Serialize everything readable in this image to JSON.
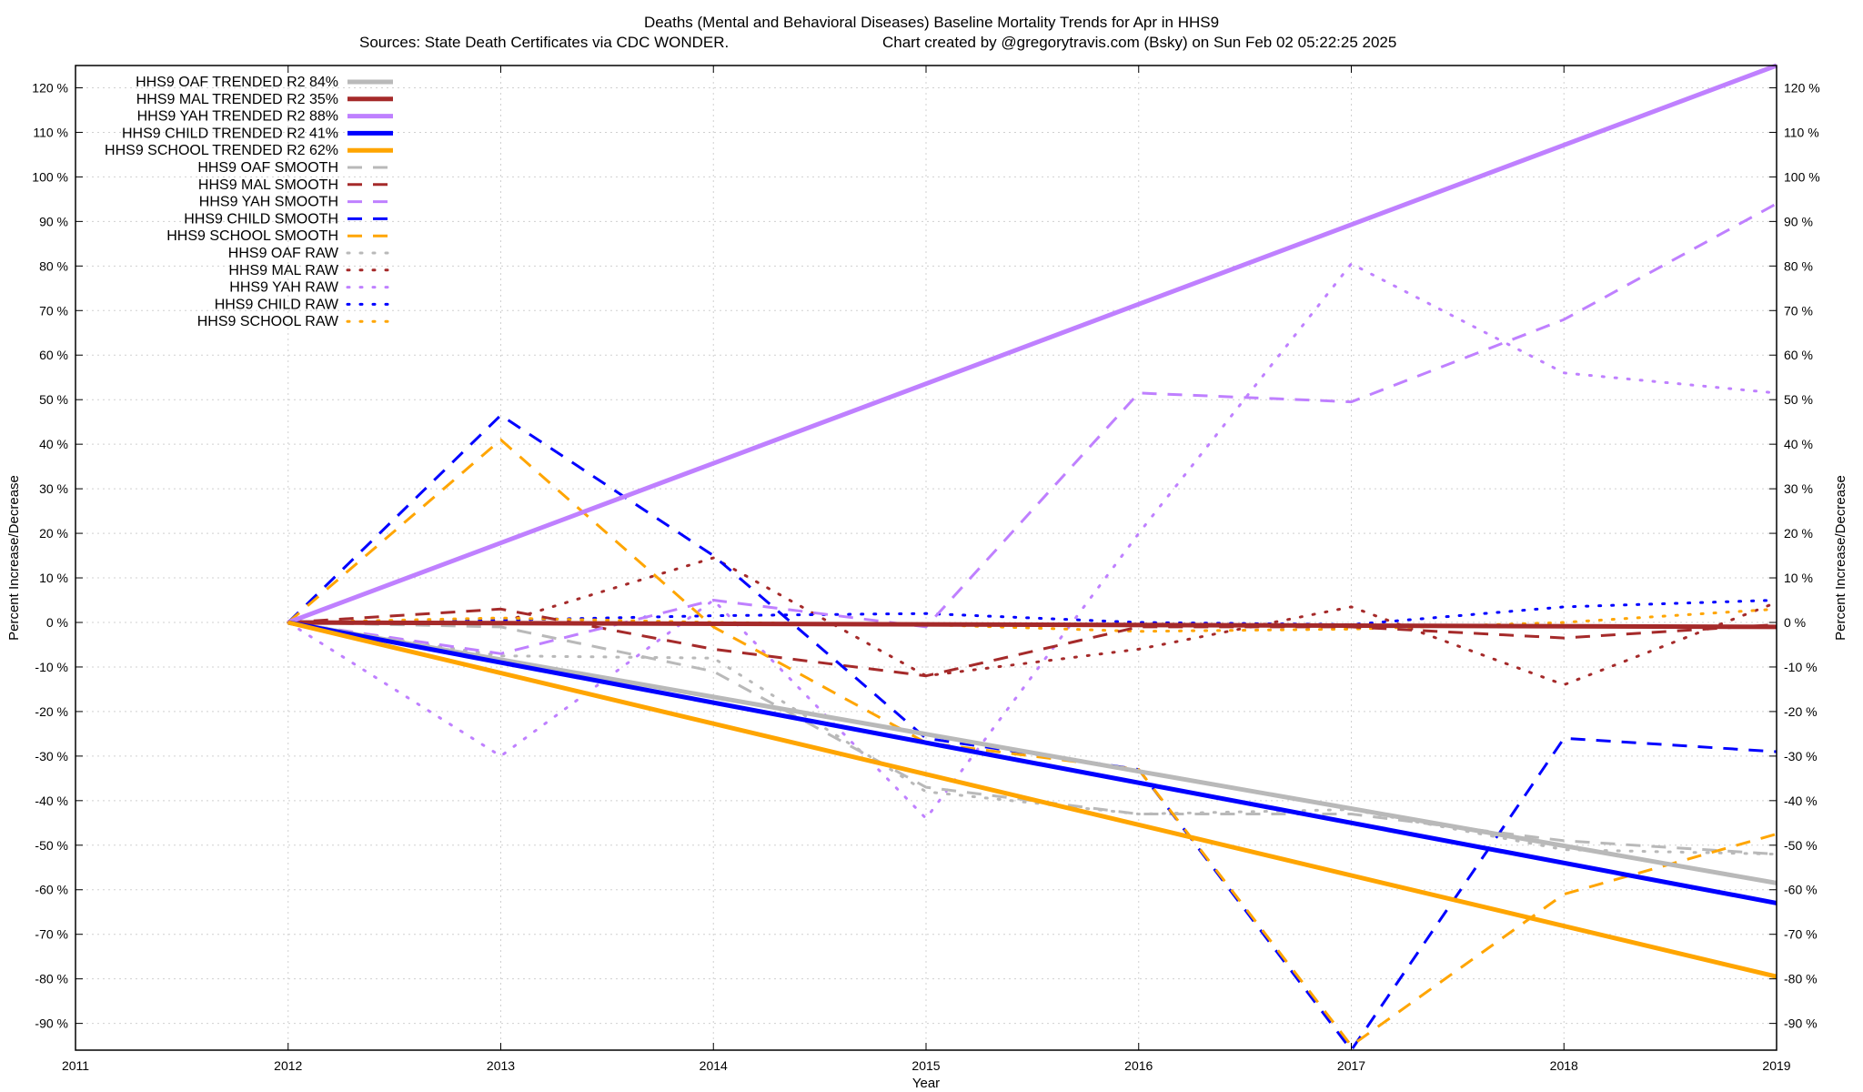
{
  "chart_data": {
    "type": "line",
    "title": "Deaths (Mental and Behavioral Diseases)  Baseline Mortality Trends for Apr in HHS9",
    "subtitle_left": "Sources: State Death Certificates via CDC WONDER.",
    "subtitle_right": "Chart created by @gregorytravis.com (Bsky) on Sun Feb 02 05:22:25 2025",
    "xlabel": "Year",
    "ylabel_left": "Percent Increase/Decrease",
    "ylabel_right": "Percent Increase/Decrease",
    "xlim": [
      2011,
      2019
    ],
    "ylim": [
      -96,
      125
    ],
    "x_ticks": [
      2011,
      2012,
      2013,
      2014,
      2015,
      2016,
      2017,
      2018,
      2019
    ],
    "y_ticks": [
      120,
      110,
      100,
      90,
      80,
      70,
      60,
      50,
      40,
      30,
      20,
      10,
      0,
      -10,
      -20,
      -30,
      -40,
      -50,
      -60,
      -70,
      -80,
      -90
    ],
    "y_tick_suffix": " %",
    "grid": true,
    "legend_position": "top-left",
    "series": [
      {
        "name": "HHS9 OAF TRENDED R2  84%",
        "color": "#b9b9b9",
        "style": "solid",
        "width": 5,
        "x": [
          2012,
          2019
        ],
        "values": [
          0,
          -58.5
        ]
      },
      {
        "name": "HHS9 MAL TRENDED R2  35%",
        "color": "#a52a2a",
        "style": "solid",
        "width": 5,
        "x": [
          2012,
          2019
        ],
        "values": [
          0,
          -1
        ]
      },
      {
        "name": "HHS9 YAH TRENDED R2  88%",
        "color": "#bf80ff",
        "style": "solid",
        "width": 5,
        "x": [
          2012,
          2019
        ],
        "values": [
          0,
          125
        ]
      },
      {
        "name": "HHS9 CHILD TRENDED R2  41%",
        "color": "#0000ff",
        "style": "solid",
        "width": 5,
        "x": [
          2012,
          2019
        ],
        "values": [
          0,
          -63
        ]
      },
      {
        "name": "HHS9 SCHOOL TRENDED R2  62%",
        "color": "#ffa500",
        "style": "solid",
        "width": 5,
        "x": [
          2012,
          2019
        ],
        "values": [
          0,
          -79.5
        ]
      },
      {
        "name": "HHS9 OAF SMOOTH",
        "color": "#b9b9b9",
        "style": "dashed",
        "width": 3,
        "x": [
          2012,
          2013,
          2014,
          2015,
          2016,
          2017,
          2018,
          2019
        ],
        "values": [
          0,
          -1,
          -11,
          -37,
          -43,
          -43,
          -49,
          -52
        ]
      },
      {
        "name": "HHS9 MAL SMOOTH",
        "color": "#a52a2a",
        "style": "dashed",
        "width": 3,
        "x": [
          2012,
          2013,
          2014,
          2015,
          2016,
          2017,
          2018,
          2019
        ],
        "values": [
          0,
          3,
          -6,
          -12,
          -1,
          -1,
          -3.5,
          -0.5
        ]
      },
      {
        "name": "HHS9 YAH SMOOTH",
        "color": "#bf80ff",
        "style": "dashed",
        "width": 3,
        "x": [
          2012,
          2013,
          2014,
          2015,
          2016,
          2017,
          2018,
          2019
        ],
        "values": [
          0,
          -7,
          5,
          -1,
          51.5,
          49.5,
          68,
          94
        ]
      },
      {
        "name": "HHS9 CHILD SMOOTH",
        "color": "#0000ff",
        "style": "dashed",
        "width": 3,
        "x": [
          2012,
          2013,
          2014,
          2015,
          2016,
          2017,
          2018,
          2019
        ],
        "values": [
          0,
          46.5,
          15,
          -26,
          -33,
          -96,
          -26,
          -29
        ]
      },
      {
        "name": "HHS9 SCHOOL SMOOTH",
        "color": "#ffa500",
        "style": "dashed",
        "width": 3,
        "x": [
          2012,
          2013,
          2014,
          2015,
          2016,
          2017,
          2018,
          2019
        ],
        "values": [
          0,
          41,
          -1,
          -27,
          -33,
          -95,
          -61,
          -47.5
        ]
      },
      {
        "name": "HHS9 OAF RAW",
        "color": "#b9b9b9",
        "style": "dotted",
        "width": 3,
        "x": [
          2012,
          2013,
          2014,
          2015,
          2016,
          2017,
          2018,
          2019
        ],
        "values": [
          0,
          -7.5,
          -8,
          -38,
          -43,
          -42,
          -51,
          -52
        ]
      },
      {
        "name": "HHS9 MAL RAW",
        "color": "#a52a2a",
        "style": "dotted",
        "width": 3,
        "x": [
          2012,
          2013,
          2014,
          2015,
          2016,
          2017,
          2018,
          2019
        ],
        "values": [
          0,
          0,
          14.5,
          -12,
          -6,
          3.5,
          -14,
          4.5
        ]
      },
      {
        "name": "HHS9 YAH RAW",
        "color": "#bf80ff",
        "style": "dotted",
        "width": 3,
        "x": [
          2012,
          2013,
          2014,
          2015,
          2016,
          2017,
          2018,
          2019
        ],
        "values": [
          0,
          -30,
          5,
          -44,
          20,
          80.5,
          56,
          51.5
        ]
      },
      {
        "name": "HHS9 CHILD RAW",
        "color": "#0000ff",
        "style": "dotted",
        "width": 3,
        "x": [
          2012,
          2013,
          2014,
          2015,
          2016,
          2017,
          2018,
          2019
        ],
        "values": [
          0,
          0.5,
          1.5,
          2,
          0,
          -0.5,
          3.5,
          5
        ]
      },
      {
        "name": "HHS9 SCHOOL RAW",
        "color": "#ffa500",
        "style": "dotted",
        "width": 3,
        "x": [
          2012,
          2013,
          2014,
          2015,
          2016,
          2017,
          2018,
          2019
        ],
        "values": [
          0,
          1,
          0,
          -0.5,
          -2,
          -1.5,
          0,
          3
        ]
      }
    ]
  }
}
